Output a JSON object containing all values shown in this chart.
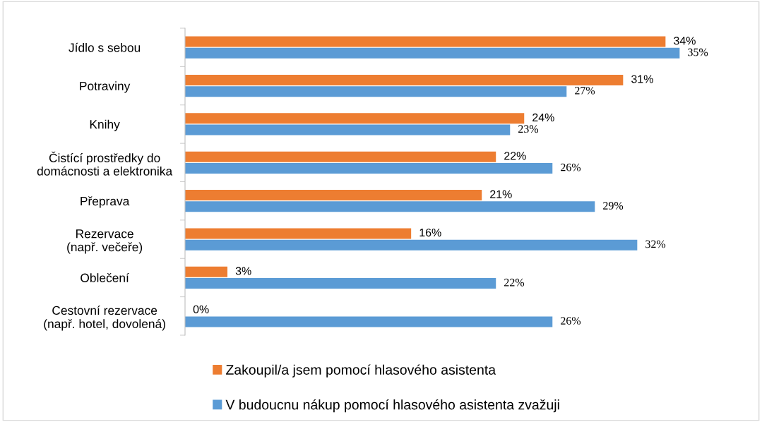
{
  "chart_data": {
    "type": "bar",
    "orientation": "horizontal",
    "categories": [
      "Jídlo s sebou",
      "Potraviny",
      "Knihy",
      "Čistící prostředky do\ndomácnosti a elektronika",
      "Přeprava",
      "Rezervace\n(např. večeře)",
      "Oblečení",
      "Cestovní rezervace\n(např. hotel, dovolená)"
    ],
    "series": [
      {
        "name": "Zakoupil/a jsem pomocí hlasového asistenta",
        "color": "#ed7d31",
        "values": [
          34,
          31,
          24,
          22,
          21,
          16,
          3,
          0
        ],
        "value_labels": [
          "34%",
          "31%",
          "24%",
          "22%",
          "21%",
          "16%",
          "3%",
          "0%"
        ]
      },
      {
        "name": "V budoucnu nákup pomocí hlasového asistenta zvažuji",
        "color": "#5b9bd5",
        "values": [
          35,
          27,
          23,
          26,
          29,
          32,
          22,
          26
        ],
        "value_labels": [
          "35%",
          "27%",
          "23%",
          "26%",
          "29%",
          "32%",
          "22%",
          "26%"
        ]
      }
    ],
    "legend": "bottom"
  }
}
